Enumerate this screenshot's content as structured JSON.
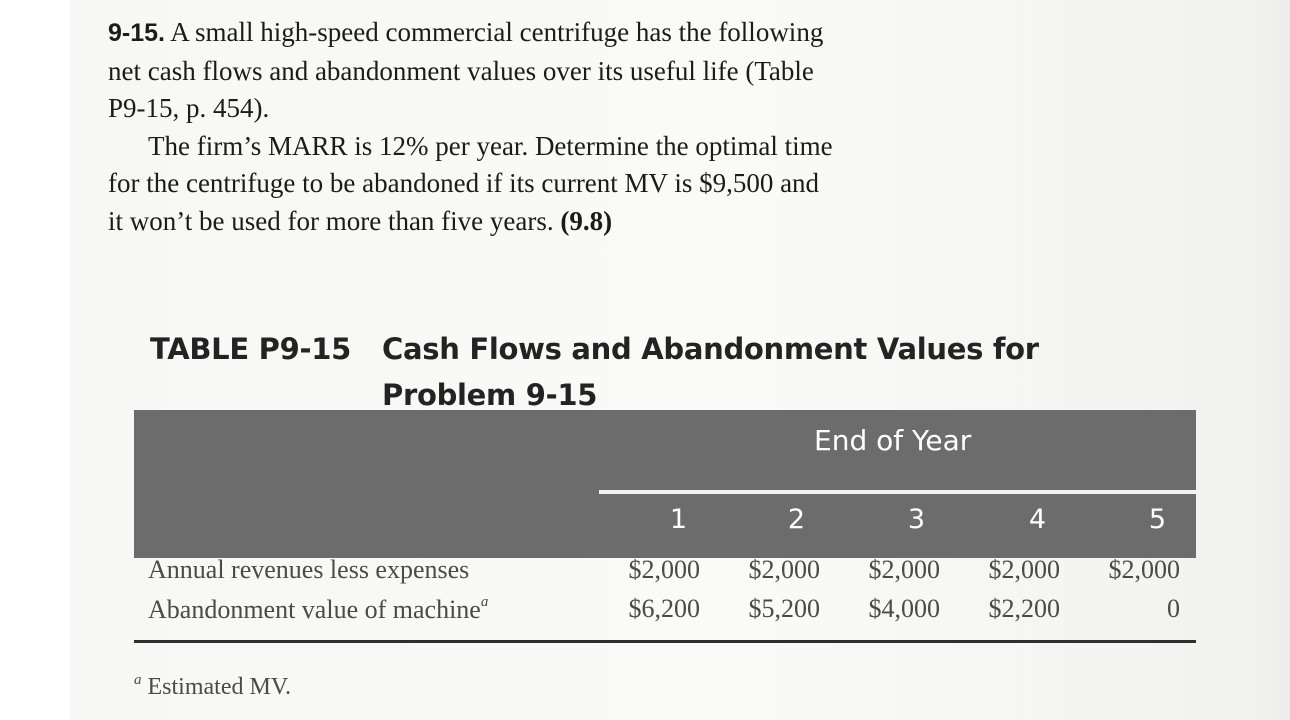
{
  "problem": {
    "number": "9-15.",
    "paragraph1": "A small high-speed commercial centrifuge has the following net cash flows and abandonment values over its useful life (Table P9-15, p. 454).",
    "paragraph2": "The firm’s MARR is 12% per year. Determine the optimal time for the centrifuge to be abandoned if its current MV is $9,500 and it won’t be used for more than five years.",
    "reference": "(9.8)"
  },
  "table": {
    "label": "TABLE P9-15",
    "title": "Cash Flows and Abandonment Values for Problem 9-15",
    "header": "End of Year",
    "years": [
      "1",
      "2",
      "3",
      "4",
      "5"
    ],
    "rows": [
      {
        "label": "Annual revenues less expenses",
        "footnote_mark": "",
        "values": [
          "$2,000",
          "$2,000",
          "$2,000",
          "$2,000",
          "$2,000"
        ]
      },
      {
        "label": "Abandonment value of machine",
        "footnote_mark": "a",
        "values": [
          "$6,200",
          "$5,200",
          "$4,000",
          "$2,200",
          "0"
        ]
      }
    ],
    "footnote": {
      "mark": "a",
      "text": "Estimated MV."
    }
  }
}
